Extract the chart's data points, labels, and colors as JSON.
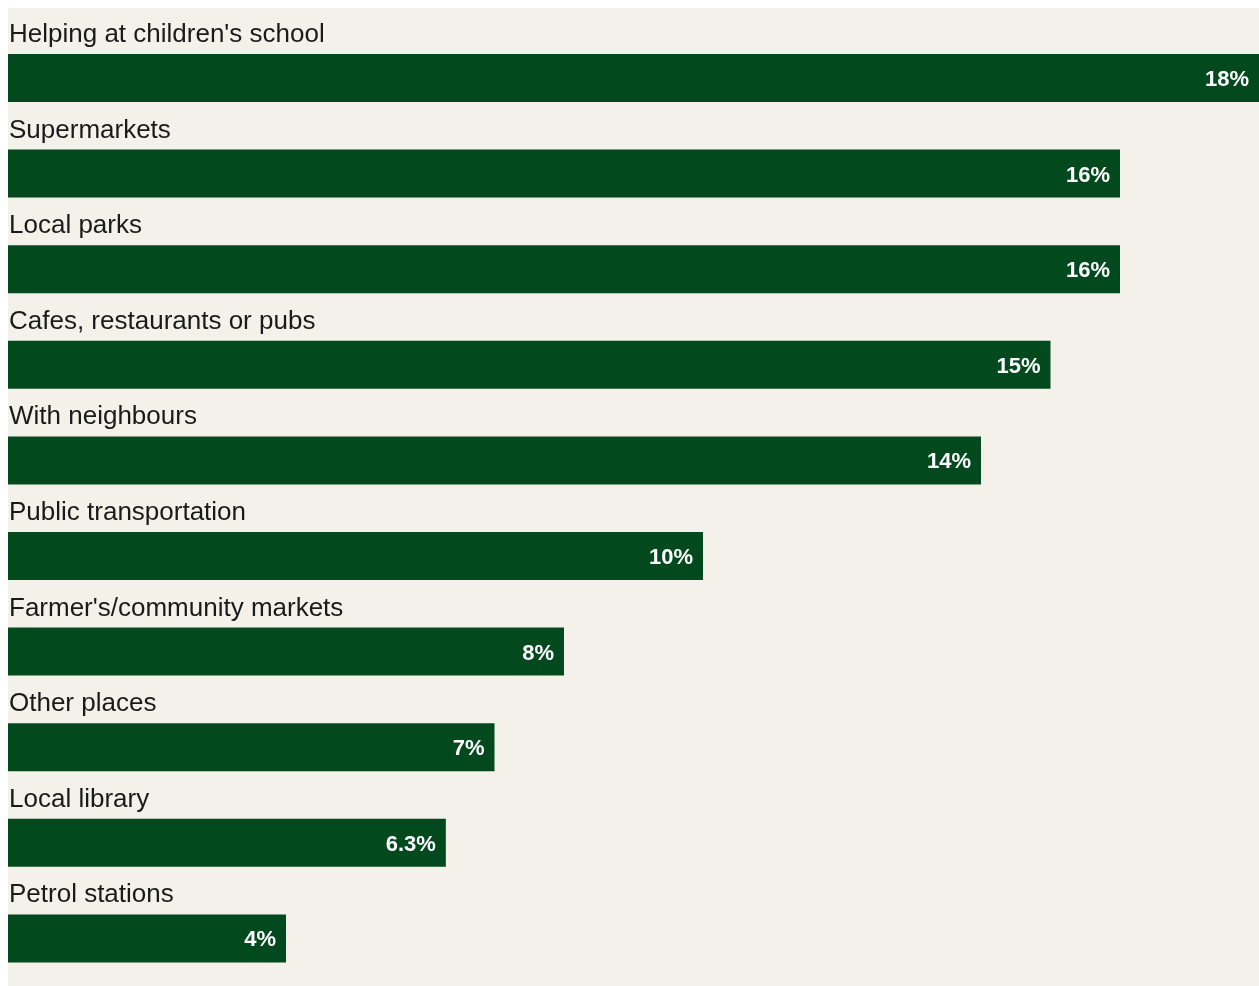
{
  "chart_data": {
    "type": "bar",
    "orientation": "horizontal",
    "categories": [
      "Helping at children's school",
      "Supermarkets",
      "Local parks",
      "Cafes, restaurants or pubs",
      "With neighbours",
      "Public transportation",
      "Farmer's/community markets",
      "Other places",
      "Local library",
      "Petrol stations"
    ],
    "values": [
      18,
      16,
      16,
      15,
      14,
      10,
      8,
      7,
      6.3,
      4
    ],
    "value_labels": [
      "18%",
      "16%",
      "16%",
      "15%",
      "14%",
      "10%",
      "8%",
      "7%",
      "6.3%",
      "4%"
    ],
    "color": "#024a1e",
    "grid": false,
    "legend": false
  }
}
